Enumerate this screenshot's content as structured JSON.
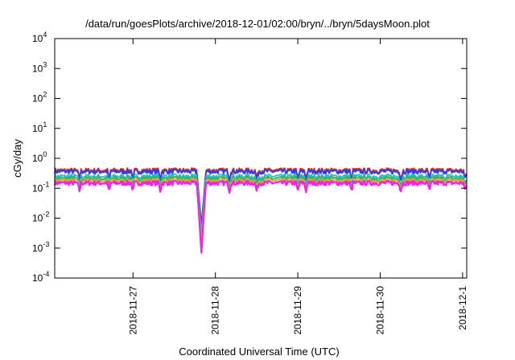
{
  "chart_data": {
    "type": "line",
    "title": "/data/run/goesPlots/archive/2018-12-01/02:00/bryn/../bryn/5daysMoon.plot",
    "xlabel": "Coordinated Universal Time (UTC)",
    "ylabel": "cGy/day",
    "yscale": "log",
    "ylim": [
      0.0001,
      10000
    ],
    "xlim": [
      0,
      5
    ],
    "grid": false,
    "y_ticks": [
      {
        "base": "10",
        "exp": "-4",
        "value": 0.0001
      },
      {
        "base": "10",
        "exp": "-3",
        "value": 0.001
      },
      {
        "base": "10",
        "exp": "-2",
        "value": 0.01
      },
      {
        "base": "10",
        "exp": "-1",
        "value": 0.1
      },
      {
        "base": "10",
        "exp": "0",
        "value": 1
      },
      {
        "base": "10",
        "exp": "1",
        "value": 10
      },
      {
        "base": "10",
        "exp": "2",
        "value": 100
      },
      {
        "base": "10",
        "exp": "3",
        "value": 1000
      },
      {
        "base": "10",
        "exp": "4",
        "value": 10000
      }
    ],
    "x_ticks": [
      {
        "label": "2018-11-27",
        "value": 0.95
      },
      {
        "label": "2018-11-28",
        "value": 1.95
      },
      {
        "label": "2018-11-29",
        "value": 2.95
      },
      {
        "label": "2018-11-30",
        "value": 3.95
      },
      {
        "label": "2018-12-1",
        "value": 4.95
      }
    ],
    "series": [
      {
        "color": "#e8252b",
        "base": 0.4,
        "dip_min": 0.003
      },
      {
        "color": "#2a3cf0",
        "base": 0.36,
        "dip_min": 0.006
      },
      {
        "color": "#18c4c0",
        "base": 0.25,
        "dip_min": 0.003
      },
      {
        "color": "#37b24a",
        "base": 0.21,
        "dip_min": 0.002
      },
      {
        "color": "#f0a038",
        "base": 0.18,
        "dip_min": 0.0015
      },
      {
        "color": "#f020f0",
        "base": 0.15,
        "dip_min": 0.0007
      }
    ]
  }
}
